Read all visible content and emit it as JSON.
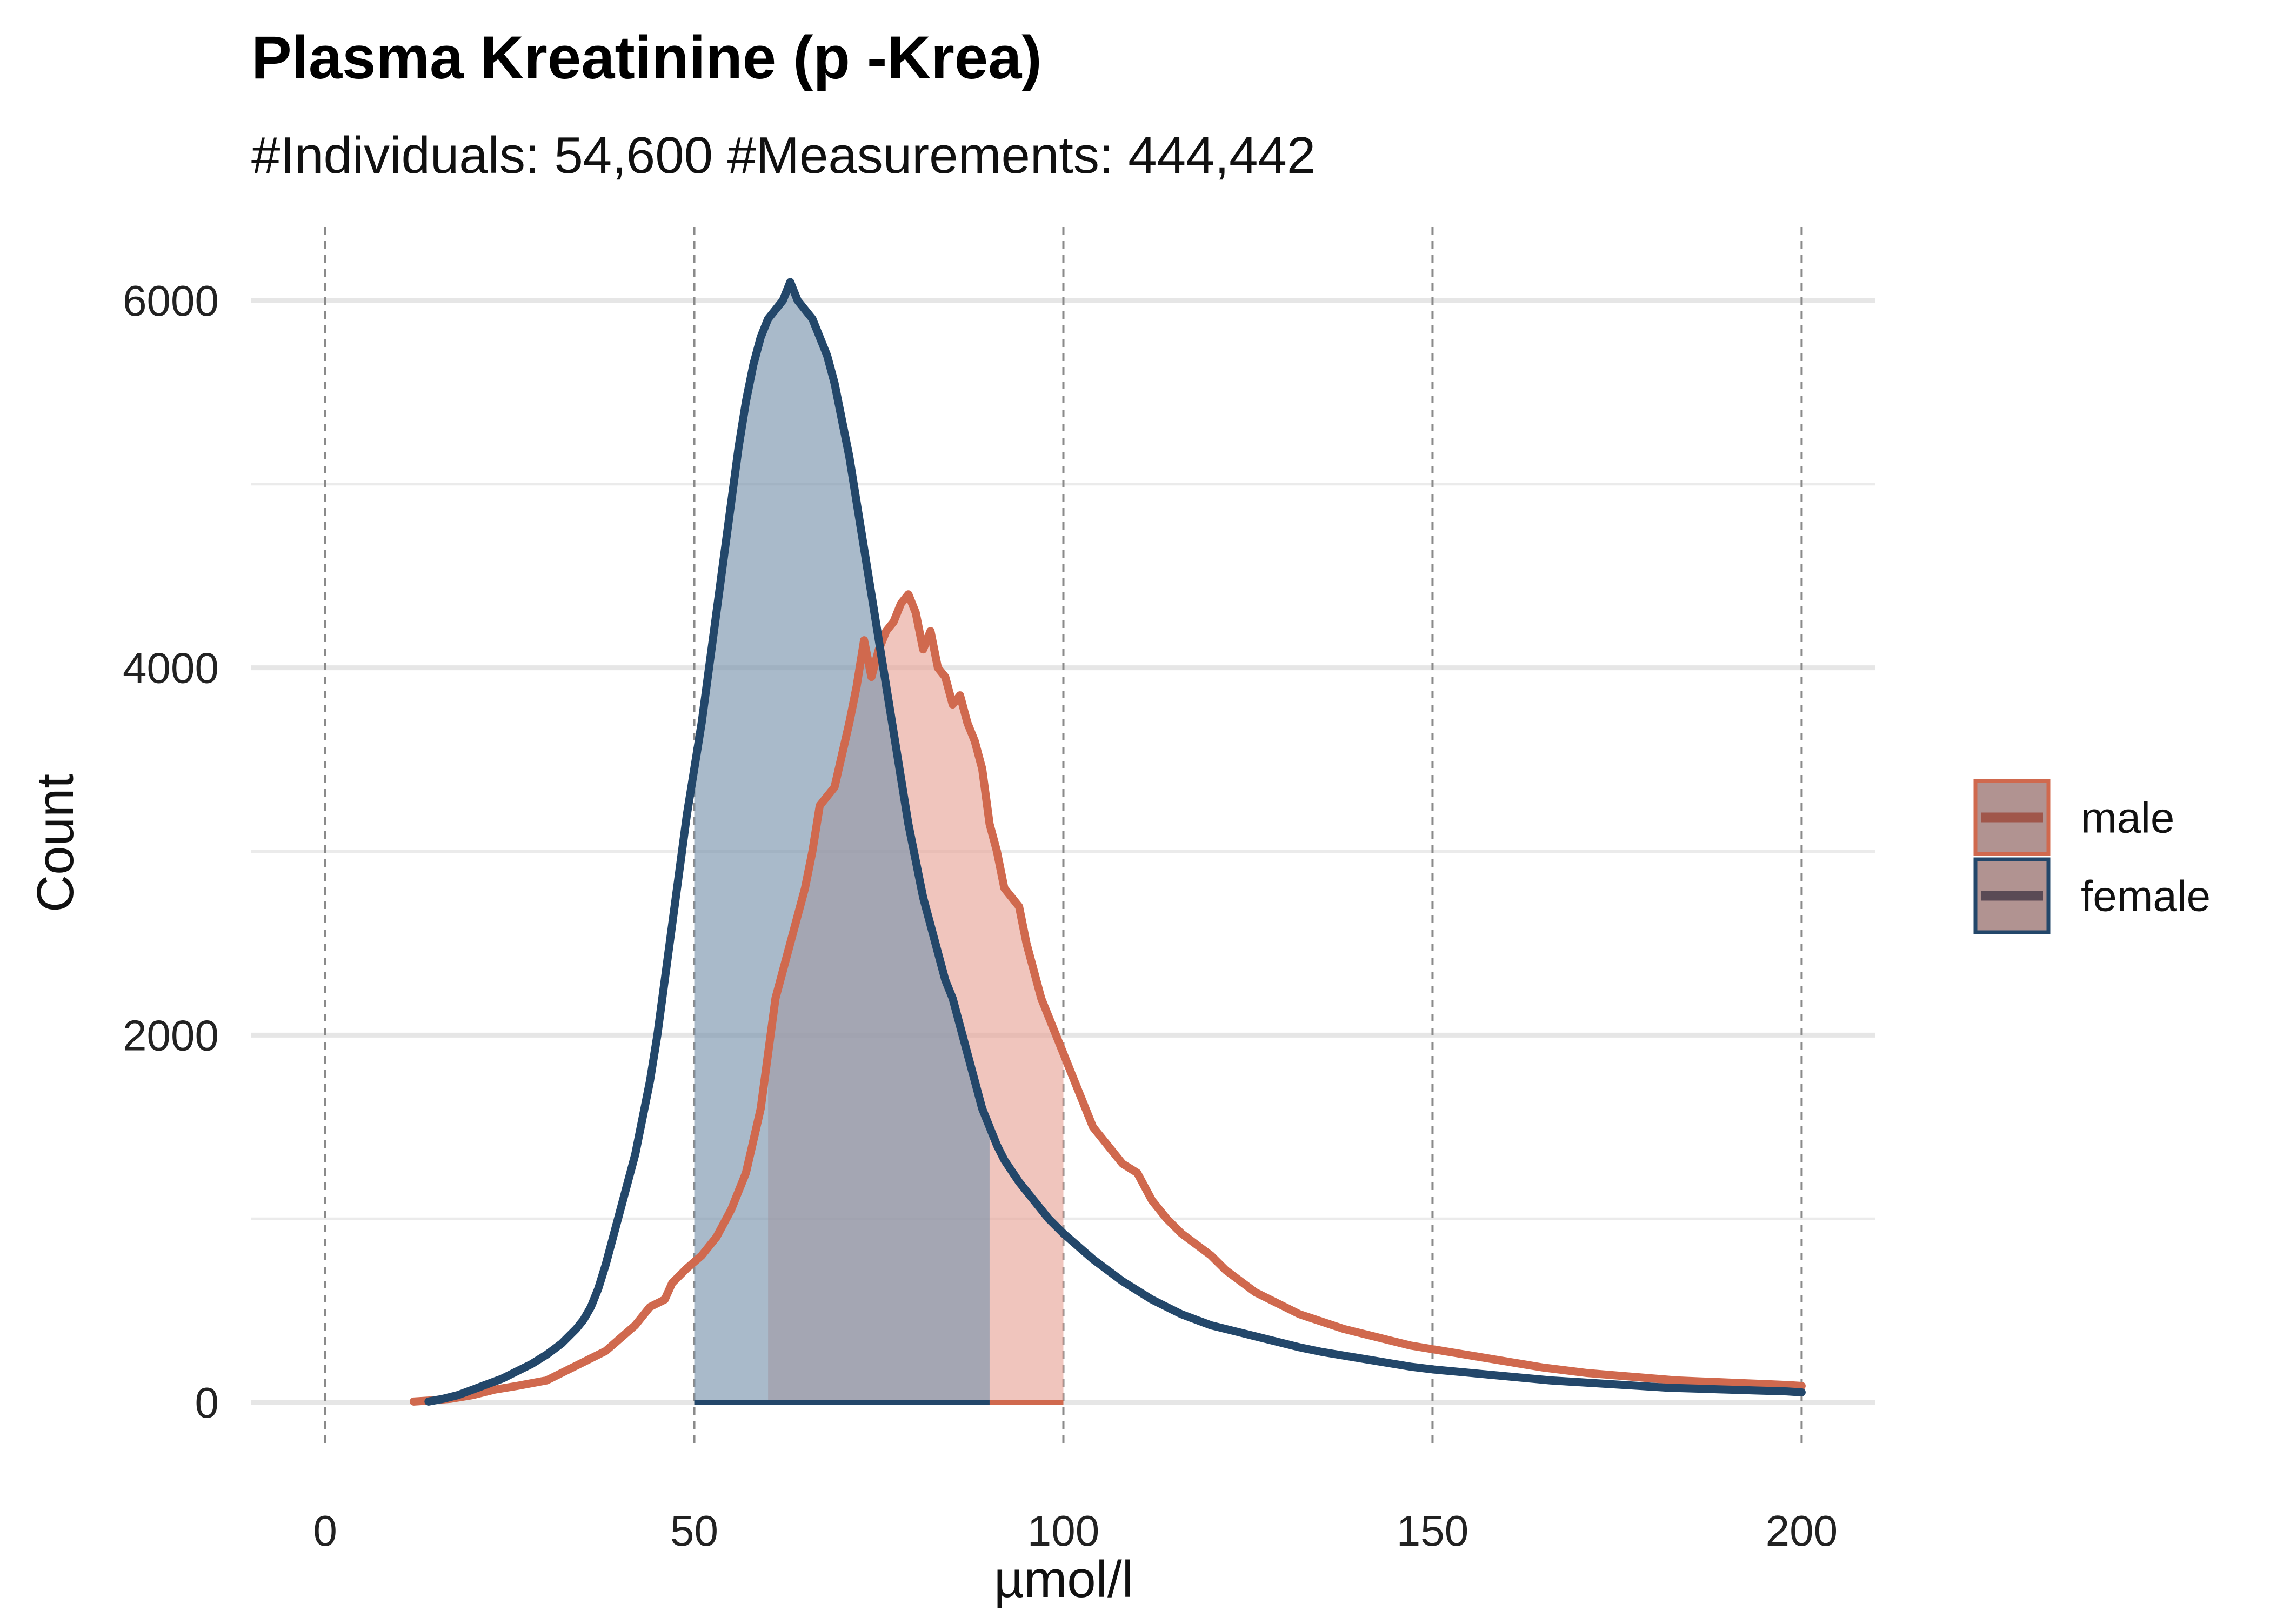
{
  "chart_data": {
    "type": "area",
    "title": "Plasma Kreatinine (p -Krea)",
    "subtitle": "#Individuals: 54,600 #Measurements: 444,442",
    "xlabel": "µmol/l",
    "ylabel": "Count",
    "xlim": [
      -10,
      210
    ],
    "ylim": [
      -250,
      6400
    ],
    "x_ticks": [
      0,
      50,
      100,
      150,
      200
    ],
    "y_ticks": [
      0,
      2000,
      4000,
      6000
    ],
    "y_minor_ticks": [
      1000,
      3000,
      5000
    ],
    "x_reference_lines": [
      0,
      50,
      100,
      150,
      200
    ],
    "grid": true,
    "legend_position": "right",
    "series": [
      {
        "name": "male",
        "line_color": "#d0694e",
        "fill_color": "#e8a699",
        "shaded_range": [
          60,
          100
        ],
        "points": [
          [
            12,
            5
          ],
          [
            14,
            10
          ],
          [
            17,
            20
          ],
          [
            20,
            40
          ],
          [
            23,
            70
          ],
          [
            26,
            90
          ],
          [
            30,
            120
          ],
          [
            33,
            180
          ],
          [
            36,
            240
          ],
          [
            38,
            280
          ],
          [
            40,
            350
          ],
          [
            42,
            420
          ],
          [
            44,
            520
          ],
          [
            46,
            560
          ],
          [
            47,
            650
          ],
          [
            49,
            730
          ],
          [
            51,
            800
          ],
          [
            53,
            900
          ],
          [
            55,
            1050
          ],
          [
            57,
            1250
          ],
          [
            59,
            1600
          ],
          [
            60,
            1900
          ],
          [
            61,
            2200
          ],
          [
            63,
            2500
          ],
          [
            65,
            2800
          ],
          [
            66,
            3000
          ],
          [
            67,
            3250
          ],
          [
            69,
            3350
          ],
          [
            71,
            3700
          ],
          [
            72,
            3900
          ],
          [
            73,
            4150
          ],
          [
            74,
            3950
          ],
          [
            75,
            4100
          ],
          [
            76,
            4200
          ],
          [
            77,
            4250
          ],
          [
            78,
            4350
          ],
          [
            79,
            4400
          ],
          [
            80,
            4300
          ],
          [
            81,
            4100
          ],
          [
            82,
            4200
          ],
          [
            83,
            4000
          ],
          [
            84,
            3950
          ],
          [
            85,
            3800
          ],
          [
            86,
            3850
          ],
          [
            87,
            3700
          ],
          [
            88,
            3600
          ],
          [
            89,
            3450
          ],
          [
            90,
            3150
          ],
          [
            91,
            3000
          ],
          [
            92,
            2800
          ],
          [
            94,
            2700
          ],
          [
            95,
            2500
          ],
          [
            96,
            2350
          ],
          [
            97,
            2200
          ],
          [
            98,
            2100
          ],
          [
            99,
            2000
          ],
          [
            100,
            1900
          ],
          [
            101,
            1800
          ],
          [
            102,
            1700
          ],
          [
            104,
            1500
          ],
          [
            106,
            1400
          ],
          [
            108,
            1300
          ],
          [
            110,
            1250
          ],
          [
            112,
            1100
          ],
          [
            114,
            1000
          ],
          [
            116,
            920
          ],
          [
            118,
            860
          ],
          [
            120,
            800
          ],
          [
            122,
            720
          ],
          [
            124,
            660
          ],
          [
            126,
            600
          ],
          [
            128,
            560
          ],
          [
            130,
            520
          ],
          [
            132,
            480
          ],
          [
            135,
            440
          ],
          [
            138,
            400
          ],
          [
            141,
            370
          ],
          [
            144,
            340
          ],
          [
            147,
            310
          ],
          [
            150,
            290
          ],
          [
            153,
            270
          ],
          [
            156,
            250
          ],
          [
            159,
            230
          ],
          [
            162,
            210
          ],
          [
            165,
            190
          ],
          [
            168,
            175
          ],
          [
            171,
            160
          ],
          [
            174,
            150
          ],
          [
            177,
            140
          ],
          [
            180,
            130
          ],
          [
            183,
            120
          ],
          [
            186,
            115
          ],
          [
            189,
            110
          ],
          [
            192,
            105
          ],
          [
            195,
            100
          ],
          [
            198,
            95
          ],
          [
            200,
            90
          ]
        ]
      },
      {
        "name": "female",
        "line_color": "#23476a",
        "fill_color": "#7b95ad",
        "shaded_range": [
          50,
          90
        ],
        "points": [
          [
            14,
            5
          ],
          [
            16,
            20
          ],
          [
            18,
            40
          ],
          [
            20,
            70
          ],
          [
            22,
            100
          ],
          [
            24,
            130
          ],
          [
            26,
            170
          ],
          [
            28,
            210
          ],
          [
            30,
            260
          ],
          [
            32,
            320
          ],
          [
            34,
            400
          ],
          [
            35,
            450
          ],
          [
            36,
            520
          ],
          [
            37,
            620
          ],
          [
            38,
            750
          ],
          [
            39,
            900
          ],
          [
            40,
            1050
          ],
          [
            41,
            1200
          ],
          [
            42,
            1350
          ],
          [
            43,
            1550
          ],
          [
            44,
            1750
          ],
          [
            45,
            2000
          ],
          [
            46,
            2300
          ],
          [
            47,
            2600
          ],
          [
            48,
            2900
          ],
          [
            49,
            3200
          ],
          [
            50,
            3450
          ],
          [
            51,
            3700
          ],
          [
            52,
            4000
          ],
          [
            53,
            4300
          ],
          [
            54,
            4600
          ],
          [
            55,
            4900
          ],
          [
            56,
            5200
          ],
          [
            57,
            5450
          ],
          [
            58,
            5650
          ],
          [
            59,
            5800
          ],
          [
            60,
            5900
          ],
          [
            61,
            5950
          ],
          [
            62,
            6000
          ],
          [
            63,
            6100
          ],
          [
            64,
            6000
          ],
          [
            65,
            5950
          ],
          [
            66,
            5900
          ],
          [
            67,
            5800
          ],
          [
            68,
            5700
          ],
          [
            69,
            5550
          ],
          [
            70,
            5350
          ],
          [
            71,
            5150
          ],
          [
            72,
            4900
          ],
          [
            73,
            4650
          ],
          [
            74,
            4400
          ],
          [
            75,
            4150
          ],
          [
            76,
            3900
          ],
          [
            77,
            3650
          ],
          [
            78,
            3400
          ],
          [
            79,
            3150
          ],
          [
            80,
            2950
          ],
          [
            81,
            2750
          ],
          [
            82,
            2600
          ],
          [
            83,
            2450
          ],
          [
            84,
            2300
          ],
          [
            85,
            2200
          ],
          [
            86,
            2050
          ],
          [
            87,
            1900
          ],
          [
            88,
            1750
          ],
          [
            89,
            1600
          ],
          [
            90,
            1500
          ],
          [
            91,
            1400
          ],
          [
            92,
            1320
          ],
          [
            94,
            1200
          ],
          [
            96,
            1100
          ],
          [
            98,
            1000
          ],
          [
            100,
            920
          ],
          [
            102,
            850
          ],
          [
            104,
            780
          ],
          [
            106,
            720
          ],
          [
            108,
            660
          ],
          [
            110,
            610
          ],
          [
            112,
            560
          ],
          [
            114,
            520
          ],
          [
            116,
            480
          ],
          [
            118,
            450
          ],
          [
            120,
            420
          ],
          [
            123,
            390
          ],
          [
            126,
            360
          ],
          [
            129,
            330
          ],
          [
            132,
            300
          ],
          [
            135,
            275
          ],
          [
            138,
            255
          ],
          [
            141,
            235
          ],
          [
            144,
            215
          ],
          [
            147,
            195
          ],
          [
            150,
            180
          ],
          [
            154,
            165
          ],
          [
            158,
            150
          ],
          [
            162,
            135
          ],
          [
            166,
            120
          ],
          [
            170,
            110
          ],
          [
            174,
            100
          ],
          [
            178,
            90
          ],
          [
            182,
            80
          ],
          [
            186,
            75
          ],
          [
            190,
            70
          ],
          [
            194,
            65
          ],
          [
            198,
            60
          ],
          [
            200,
            55
          ]
        ]
      }
    ]
  }
}
